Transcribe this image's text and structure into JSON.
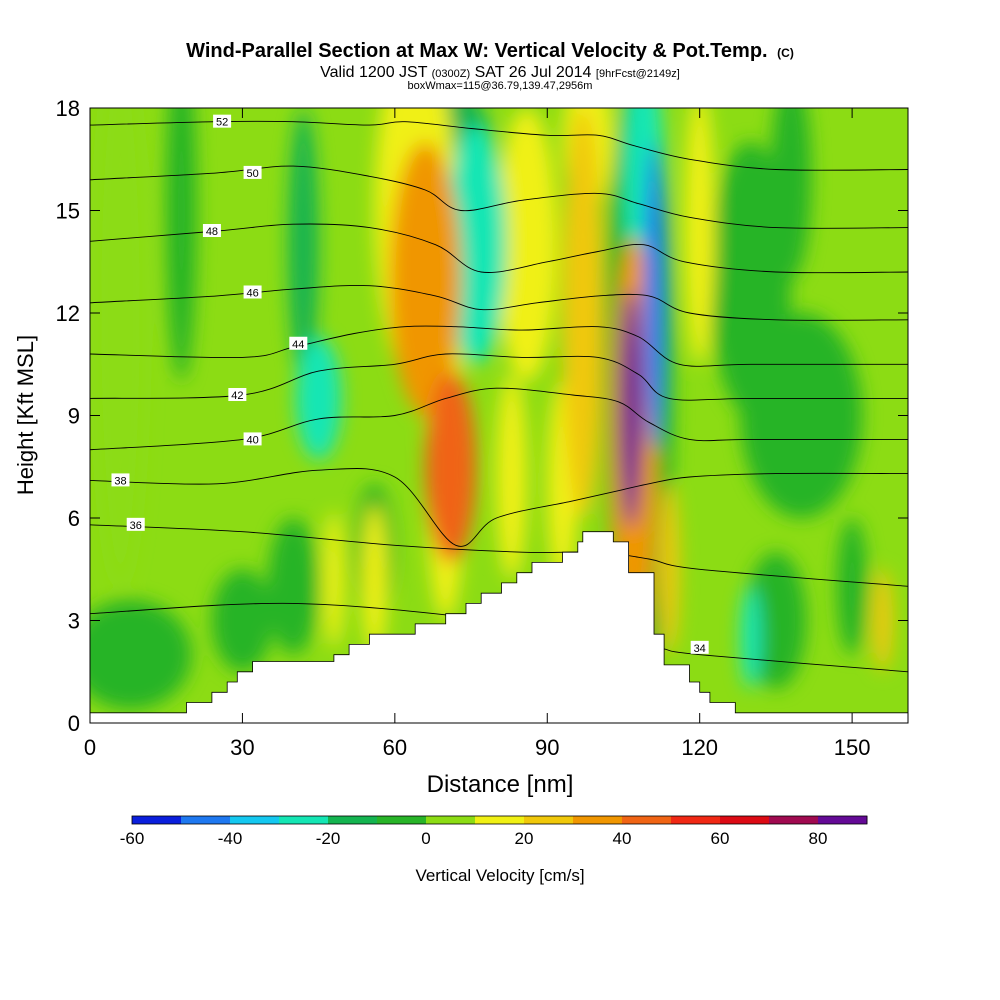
{
  "chart_data": {
    "type": "heatmap",
    "title": "Wind-Parallel Section at Max W: Vertical Velocity & Pot.Temp.",
    "title_mark": "(C)",
    "subtitle_parts": [
      "Valid 1200 JST",
      "(0300Z)",
      "SAT 26 Jul 2014",
      "[9hrFcst@2149z]"
    ],
    "subtitle2": "boxWmax=115@36.79,139.47,2956m",
    "xlabel": "Distance [nm]",
    "ylabel": "Height [Kft MSL]",
    "xlim": [
      0,
      161
    ],
    "ylim": [
      0,
      18
    ],
    "xticks": [
      "0",
      "30",
      "60",
      "90",
      "120",
      "150"
    ],
    "xtick_values": [
      0,
      30,
      60,
      90,
      120,
      150
    ],
    "yticks": [
      "0",
      "3",
      "6",
      "9",
      "12",
      "15",
      "18"
    ],
    "ytick_values": [
      0,
      3,
      6,
      9,
      12,
      15,
      18
    ],
    "colorbar": {
      "label": "Vertical Velocity [cm/s]",
      "tick_labels": [
        "-60",
        "-40",
        "-20",
        "0",
        "20",
        "40",
        "60",
        "80"
      ],
      "tick_values": [
        -60,
        -40,
        -20,
        0,
        20,
        40,
        60,
        80
      ],
      "range": [
        -60,
        90
      ],
      "step": 10,
      "colors": [
        "#0a1edc",
        "#1e78f0",
        "#14c8f0",
        "#14e6b4",
        "#14b450",
        "#28b428",
        "#8cdc14",
        "#f0f014",
        "#f0c80a",
        "#f09600",
        "#f06414",
        "#f02814",
        "#dc0a14",
        "#a00a50",
        "#640a96"
      ]
    },
    "terrain": [
      [
        0,
        0.3
      ],
      [
        19,
        0.3
      ],
      [
        19,
        0.6
      ],
      [
        24,
        0.6
      ],
      [
        24,
        0.9
      ],
      [
        27,
        0.9
      ],
      [
        27,
        1.2
      ],
      [
        29,
        1.2
      ],
      [
        29,
        1.5
      ],
      [
        32,
        1.5
      ],
      [
        32,
        1.8
      ],
      [
        48,
        1.8
      ],
      [
        48,
        2.0
      ],
      [
        51,
        2.0
      ],
      [
        51,
        2.3
      ],
      [
        55,
        2.3
      ],
      [
        55,
        2.6
      ],
      [
        64,
        2.6
      ],
      [
        64,
        2.9
      ],
      [
        70,
        2.9
      ],
      [
        70,
        3.2
      ],
      [
        74,
        3.2
      ],
      [
        74,
        3.5
      ],
      [
        77,
        3.5
      ],
      [
        77,
        3.8
      ],
      [
        81,
        3.8
      ],
      [
        81,
        4.1
      ],
      [
        84,
        4.1
      ],
      [
        84,
        4.4
      ],
      [
        87,
        4.4
      ],
      [
        87,
        4.7
      ],
      [
        93,
        4.7
      ],
      [
        93,
        5.0
      ],
      [
        96,
        5.0
      ],
      [
        96,
        5.3
      ],
      [
        97,
        5.3
      ],
      [
        97,
        5.6
      ],
      [
        103,
        5.6
      ],
      [
        103,
        5.3
      ],
      [
        106,
        5.3
      ],
      [
        106,
        4.4
      ],
      [
        111,
        4.4
      ],
      [
        111,
        2.6
      ],
      [
        113,
        2.6
      ],
      [
        113,
        1.7
      ],
      [
        118,
        1.7
      ],
      [
        118,
        1.2
      ],
      [
        120,
        1.2
      ],
      [
        120,
        0.9
      ],
      [
        122,
        0.9
      ],
      [
        122,
        0.6
      ],
      [
        127,
        0.6
      ],
      [
        127,
        0.3
      ],
      [
        161,
        0.3
      ]
    ],
    "wfield": [
      {
        "x": 71,
        "y": 7.5,
        "rx": 5,
        "ry": 2.8,
        "w": 45
      },
      {
        "x": 70,
        "y": 7.6,
        "rx": 4,
        "ry": 4.6,
        "w": 15
      },
      {
        "x": 106.5,
        "y": 9.2,
        "rx": 2.2,
        "ry": 3.5,
        "w": 80
      },
      {
        "x": 107,
        "y": 8.2,
        "rx": 4.5,
        "ry": 6,
        "w": 35
      },
      {
        "x": 114,
        "y": 4.5,
        "rx": 2,
        "ry": 2.5,
        "w": 20
      },
      {
        "x": 111,
        "y": 12.5,
        "rx": 2,
        "ry": 4.5,
        "w": -50
      },
      {
        "x": 109,
        "y": 16,
        "rx": 4,
        "ry": 3.5,
        "w": -25
      },
      {
        "x": 108,
        "y": 10,
        "rx": 7,
        "ry": 9,
        "w": -10
      },
      {
        "x": 76,
        "y": 14,
        "rx": 6,
        "ry": 3.5,
        "w": -30
      },
      {
        "x": 73,
        "y": 16,
        "rx": 7,
        "ry": 2.5,
        "w": -15
      },
      {
        "x": 45,
        "y": 9.5,
        "rx": 4.5,
        "ry": 1.8,
        "w": -25
      },
      {
        "x": 42,
        "y": 14,
        "rx": 3,
        "ry": 4,
        "w": -20
      },
      {
        "x": 66,
        "y": 13,
        "rx": 7,
        "ry": 4,
        "w": 30
      },
      {
        "x": 64,
        "y": 15,
        "rx": 8,
        "ry": 5,
        "w": 15
      },
      {
        "x": 86,
        "y": 14,
        "rx": 6,
        "ry": 4,
        "w": 15
      },
      {
        "x": 97,
        "y": 12,
        "rx": 4,
        "ry": 6,
        "w": 20
      },
      {
        "x": 98,
        "y": 17,
        "rx": 5,
        "ry": 2,
        "w": 15
      },
      {
        "x": 120,
        "y": 14.5,
        "rx": 3,
        "ry": 4,
        "w": 15
      },
      {
        "x": 130,
        "y": 13,
        "rx": 8,
        "ry": 4,
        "w": -10
      },
      {
        "x": 140,
        "y": 9,
        "rx": 12,
        "ry": 3,
        "w": -8
      },
      {
        "x": 8,
        "y": 2,
        "rx": 12,
        "ry": 1.6,
        "w": -10
      },
      {
        "x": 40,
        "y": 4,
        "rx": 5,
        "ry": 2,
        "w": -10
      },
      {
        "x": 56,
        "y": 5,
        "rx": 4,
        "ry": 2,
        "w": -10
      },
      {
        "x": 30,
        "y": 3,
        "rx": 6,
        "ry": 1.5,
        "w": -8
      },
      {
        "x": 48,
        "y": 4.2,
        "rx": 2,
        "ry": 2,
        "w": 15
      },
      {
        "x": 56,
        "y": 4.2,
        "rx": 2.5,
        "ry": 2.2,
        "w": 10
      },
      {
        "x": 83,
        "y": 7.2,
        "rx": 3,
        "ry": 3,
        "w": 12
      },
      {
        "x": 93,
        "y": 7,
        "rx": 3,
        "ry": 3,
        "w": 10
      },
      {
        "x": 135,
        "y": 3,
        "rx": 6,
        "ry": 2,
        "w": -10
      },
      {
        "x": 130,
        "y": 2.5,
        "rx": 2,
        "ry": 1.5,
        "w": -25
      },
      {
        "x": 156,
        "y": 3,
        "rx": 2,
        "ry": 1.5,
        "w": 20
      },
      {
        "x": 150,
        "y": 4,
        "rx": 3,
        "ry": 2,
        "w": -8
      },
      {
        "x": 18,
        "y": 15,
        "rx": 3,
        "ry": 5,
        "w": -8
      },
      {
        "x": 6,
        "y": 12,
        "rx": 5,
        "ry": 8,
        "w": 3
      },
      {
        "x": 138,
        "y": 16,
        "rx": 4,
        "ry": 3,
        "w": -8
      }
    ],
    "contours": [
      {
        "theta": 34,
        "label": "34",
        "pts": [
          [
            0,
            3.2
          ],
          [
            40,
            3.5
          ],
          [
            80,
            3.0
          ],
          [
            100,
            2.5
          ],
          [
            112,
            2.2
          ],
          [
            120,
            2.0
          ],
          [
            161,
            1.5
          ]
        ],
        "lx": 120,
        "ly": 2.2
      },
      {
        "theta": 36,
        "label": "36",
        "pts": [
          [
            0,
            5.8
          ],
          [
            30,
            5.6
          ],
          [
            60,
            5.2
          ],
          [
            85,
            5.0
          ],
          [
            100,
            5.0
          ],
          [
            110,
            4.8
          ],
          [
            120,
            4.5
          ],
          [
            161,
            4.0
          ]
        ],
        "lx": 9,
        "ly": 5.8
      },
      {
        "theta": 38,
        "label": "38",
        "pts": [
          [
            0,
            7.1
          ],
          [
            25,
            7.0
          ],
          [
            45,
            7.4
          ],
          [
            60,
            7.2
          ],
          [
            72,
            5.2
          ],
          [
            80,
            6.0
          ],
          [
            95,
            6.5
          ],
          [
            104,
            6.8
          ],
          [
            110,
            7.0
          ],
          [
            118,
            7.2
          ],
          [
            135,
            7.3
          ],
          [
            161,
            7.3
          ]
        ],
        "lx": 6,
        "ly": 7.1
      },
      {
        "theta": 40,
        "label": "40",
        "pts": [
          [
            0,
            8.0
          ],
          [
            30,
            8.3
          ],
          [
            45,
            8.9
          ],
          [
            60,
            9.0
          ],
          [
            70,
            9.5
          ],
          [
            80,
            9.8
          ],
          [
            95,
            9.6
          ],
          [
            104,
            9.4
          ],
          [
            110,
            8.8
          ],
          [
            118,
            8.3
          ],
          [
            130,
            8.3
          ],
          [
            161,
            8.3
          ]
        ],
        "lx": 32,
        "ly": 8.3
      },
      {
        "theta": 42,
        "label": "42",
        "pts": [
          [
            0,
            9.5
          ],
          [
            30,
            9.6
          ],
          [
            45,
            10.3
          ],
          [
            60,
            10.5
          ],
          [
            70,
            10.8
          ],
          [
            85,
            10.7
          ],
          [
            100,
            10.7
          ],
          [
            108,
            10.2
          ],
          [
            114,
            9.5
          ],
          [
            130,
            9.5
          ],
          [
            161,
            9.5
          ]
        ],
        "lx": 29,
        "ly": 9.6
      },
      {
        "theta": 44,
        "label": "44",
        "pts": [
          [
            0,
            10.8
          ],
          [
            30,
            10.7
          ],
          [
            40,
            11.0
          ],
          [
            52,
            11.4
          ],
          [
            62,
            11.6
          ],
          [
            72,
            11.6
          ],
          [
            85,
            11.5
          ],
          [
            100,
            11.6
          ],
          [
            108,
            11.3
          ],
          [
            116,
            10.5
          ],
          [
            130,
            10.5
          ],
          [
            161,
            10.5
          ]
        ],
        "lx": 41,
        "ly": 11.1
      },
      {
        "theta": 46,
        "label": "46",
        "pts": [
          [
            0,
            12.3
          ],
          [
            25,
            12.5
          ],
          [
            40,
            12.7
          ],
          [
            55,
            12.8
          ],
          [
            68,
            12.5
          ],
          [
            77,
            12.1
          ],
          [
            88,
            12.3
          ],
          [
            100,
            12.5
          ],
          [
            110,
            12.5
          ],
          [
            118,
            12.0
          ],
          [
            135,
            11.8
          ],
          [
            161,
            11.8
          ]
        ],
        "lx": 32,
        "ly": 12.6
      },
      {
        "theta": 48,
        "label": "48",
        "pts": [
          [
            0,
            14.1
          ],
          [
            25,
            14.4
          ],
          [
            40,
            14.6
          ],
          [
            55,
            14.5
          ],
          [
            68,
            14.0
          ],
          [
            77,
            13.2
          ],
          [
            90,
            13.5
          ],
          [
            100,
            13.8
          ],
          [
            109,
            14.0
          ],
          [
            117,
            13.5
          ],
          [
            135,
            13.2
          ],
          [
            161,
            13.2
          ]
        ],
        "lx": 24,
        "ly": 14.4
      },
      {
        "theta": 50,
        "label": "50",
        "pts": [
          [
            0,
            15.9
          ],
          [
            25,
            16.1
          ],
          [
            40,
            16.3
          ],
          [
            55,
            16.0
          ],
          [
            66,
            15.6
          ],
          [
            73,
            15.0
          ],
          [
            85,
            15.3
          ],
          [
            100,
            15.5
          ],
          [
            108,
            15.2
          ],
          [
            118,
            14.8
          ],
          [
            135,
            14.5
          ],
          [
            161,
            14.5
          ]
        ],
        "lx": 32,
        "ly": 16.1
      },
      {
        "theta": 52,
        "label": "52",
        "pts": [
          [
            0,
            17.5
          ],
          [
            25,
            17.6
          ],
          [
            40,
            17.6
          ],
          [
            55,
            17.5
          ],
          [
            62,
            17.6
          ],
          [
            75,
            17.4
          ],
          [
            90,
            17.2
          ],
          [
            100,
            17.2
          ],
          [
            107,
            16.9
          ],
          [
            118,
            16.5
          ],
          [
            135,
            16.2
          ],
          [
            161,
            16.2
          ]
        ],
        "lx": 26,
        "ly": 17.6
      }
    ]
  }
}
